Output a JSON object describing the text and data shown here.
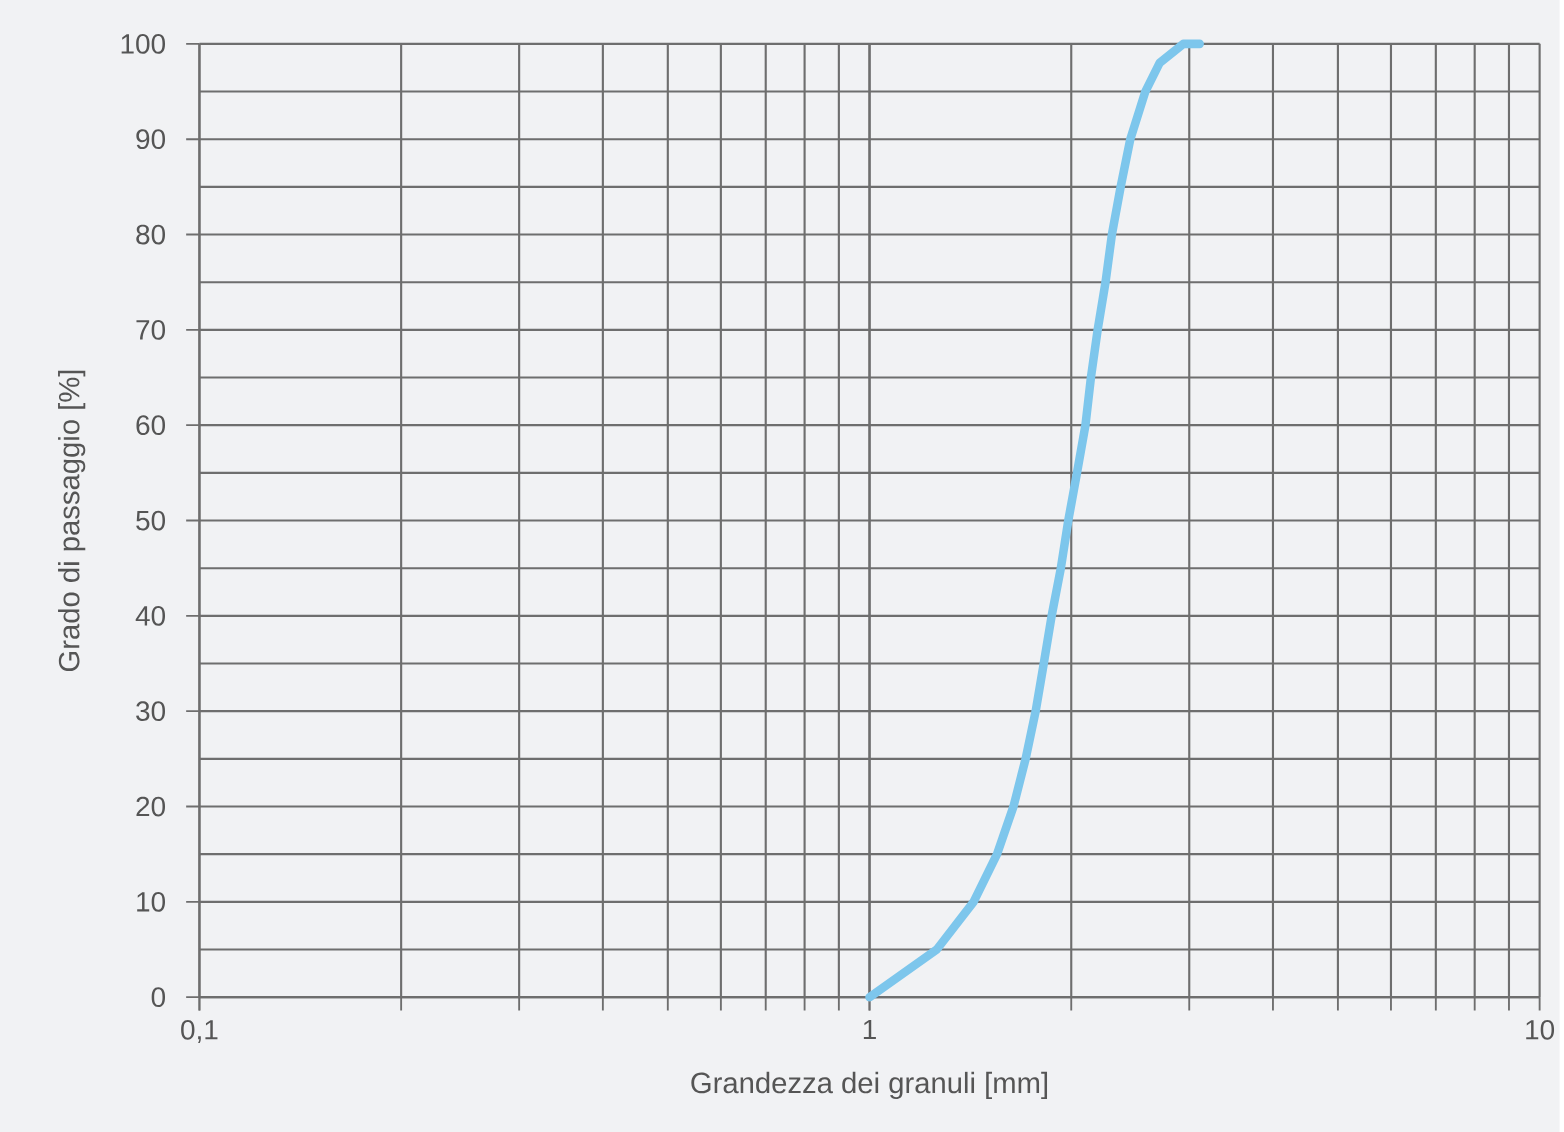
{
  "chart_data": {
    "type": "line",
    "xlabel": "Grandezza dei granuli  [mm]",
    "ylabel": "Grado di passaggio [%]",
    "log": "x",
    "grid": true,
    "line_style": "solid",
    "xlim": [
      0.1,
      10
    ],
    "ylim": [
      0,
      100
    ],
    "xticks": [
      {
        "value": 0.1,
        "label": "0,1"
      },
      1,
      10
    ],
    "yticks": [
      0,
      10,
      20,
      30,
      40,
      50,
      60,
      70,
      80,
      90,
      100
    ],
    "series": [
      {
        "color": "#7dc6ec",
        "x": [
          1.0,
          1.26,
          1.43,
          1.55,
          1.64,
          1.71,
          1.77,
          1.82,
          1.87,
          1.93,
          1.98,
          2.04,
          2.1,
          2.14,
          2.19,
          2.25,
          2.3,
          2.37,
          2.45,
          2.58,
          2.71,
          2.94,
          3.11
        ],
        "values": [
          0,
          5,
          10,
          15,
          20,
          25,
          30,
          35,
          40,
          45,
          50,
          55,
          60,
          65,
          70,
          75,
          80,
          85,
          90,
          95,
          98,
          100,
          100
        ]
      }
    ]
  }
}
